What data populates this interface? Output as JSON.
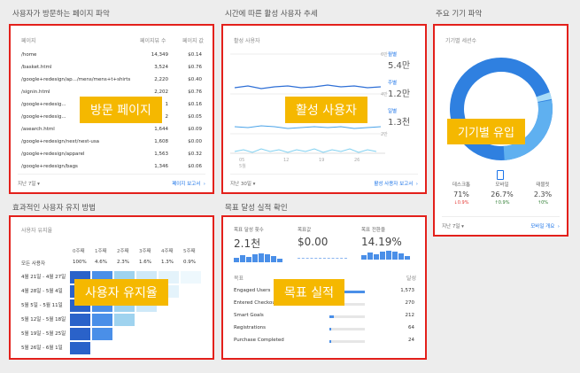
{
  "sections": {
    "pages": "사용자가 방문하는 페이지 파악",
    "active": "시간에 따른 활성 사용자 추세",
    "device": "주요 기기 파악",
    "retention": "효과적인 사용자 유지 방법",
    "goals": "목표 달성 실적 확인"
  },
  "pages_card": {
    "col_page": "페이지",
    "col_views": "페이지뷰 수",
    "col_value": "페이지 값",
    "rows": [
      {
        "page": "/home",
        "views": "14,349",
        "value": "$0.14"
      },
      {
        "page": "/basket.html",
        "views": "3,524",
        "value": "$0.76"
      },
      {
        "page": "/google+redesign/ap.../mens/mens+t+shirts",
        "views": "2,220",
        "value": "$0.40"
      },
      {
        "page": "/signin.html",
        "views": "2,202",
        "value": "$0.76"
      },
      {
        "page": "/google+redesig...",
        "views": "1",
        "value": "$0.16"
      },
      {
        "page": "/google+redesig...",
        "views": "2",
        "value": "$0.05"
      },
      {
        "page": "/asearch.html",
        "views": "1,644",
        "value": "$0.09"
      },
      {
        "page": "/google+redesign/nest/nest-usa",
        "views": "1,608",
        "value": "$0.00"
      },
      {
        "page": "/google+redesign/apparel",
        "views": "1,563",
        "value": "$0.32"
      },
      {
        "page": "/google+redesign/bags",
        "views": "1,346",
        "value": "$0.06"
      }
    ],
    "range": "지난 7일 ▾",
    "report": "페이지 보고서",
    "label": "방문 페이지"
  },
  "active_card": {
    "title": "활성 사용자",
    "legend": [
      {
        "name": "월별",
        "value": "5.4만"
      },
      {
        "name": "주별",
        "value": "1.2만"
      },
      {
        "name": "일별",
        "value": "1.3천"
      }
    ],
    "y_ticks": [
      "6만",
      "4만",
      "2만",
      "0"
    ],
    "x_ticks": [
      "05\n5월",
      "12",
      "19",
      "26"
    ],
    "range": "지난 30일 ▾",
    "report": "활성 사용자 보고서",
    "label": "활성 사용자"
  },
  "device_card": {
    "title": "기기별 세션수",
    "items": [
      {
        "name": "데스크톱",
        "pct": "71%",
        "delta": "↓0.9%",
        "color": "#e53935"
      },
      {
        "name": "모바일",
        "pct": "26.7%",
        "delta": "↑0.9%",
        "color": "#2e7d32"
      },
      {
        "name": "태블릿",
        "pct": "2.3%",
        "delta": "↑0%",
        "color": "#2e7d32"
      }
    ],
    "range": "지난 7일 ▾",
    "report": "모바일 개요",
    "label": "기기별 유입"
  },
  "retention_card": {
    "title": "사용자 유지율",
    "weeks": [
      "0주째",
      "1주째",
      "2주째",
      "3주째",
      "4주째",
      "5주째"
    ],
    "all_label": "모든 사용자",
    "all_values": [
      "100%",
      "4.6%",
      "2.3%",
      "1.6%",
      "1.3%",
      "0.9%"
    ],
    "rows": [
      "4월 21일 - 4월 27일",
      "4월 28일 - 5월 4일",
      "5월 5일 - 5월 11일",
      "5월 12일 - 5월 18일",
      "5월 19일 - 5월 25일",
      "5월 26일 - 6월 1일"
    ],
    "label": "사용자 유지율"
  },
  "goals_card": {
    "metrics": [
      {
        "name": "목표 달성 횟수",
        "value": "2.1천"
      },
      {
        "name": "목표값",
        "value": "$0.00"
      },
      {
        "name": "목표 전환율",
        "value": "14.19%"
      }
    ],
    "col_goal": "목표",
    "col_done": "달성",
    "rows": [
      {
        "name": "Engaged Users",
        "value": "1,573"
      },
      {
        "name": "Entered Checkout",
        "value": "270"
      },
      {
        "name": "Smart Goals",
        "value": "212"
      },
      {
        "name": "Registrations",
        "value": "64"
      },
      {
        "name": "Purchase Completed",
        "value": "24"
      }
    ],
    "label": "목표 실적"
  }
}
